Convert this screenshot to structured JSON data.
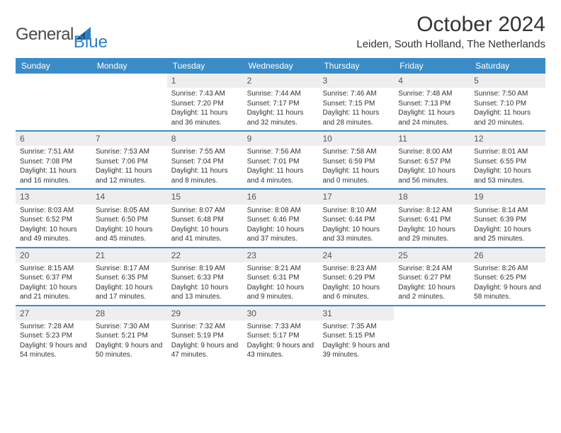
{
  "logo": {
    "general": "General",
    "blue": "Blue"
  },
  "title": "October 2024",
  "location": "Leiden, South Holland, The Netherlands",
  "colors": {
    "header_bg": "#3a8cc9",
    "header_text": "#ffffff",
    "daynum_bg": "#eeeeee",
    "row_border": "#3a8cc9",
    "text": "#333333",
    "logo_blue": "#2c7ec4"
  },
  "day_headers": [
    "Sunday",
    "Monday",
    "Tuesday",
    "Wednesday",
    "Thursday",
    "Friday",
    "Saturday"
  ],
  "weeks": [
    [
      null,
      null,
      {
        "num": "1",
        "sunrise": "Sunrise: 7:43 AM",
        "sunset": "Sunset: 7:20 PM",
        "daylight": "Daylight: 11 hours and 36 minutes."
      },
      {
        "num": "2",
        "sunrise": "Sunrise: 7:44 AM",
        "sunset": "Sunset: 7:17 PM",
        "daylight": "Daylight: 11 hours and 32 minutes."
      },
      {
        "num": "3",
        "sunrise": "Sunrise: 7:46 AM",
        "sunset": "Sunset: 7:15 PM",
        "daylight": "Daylight: 11 hours and 28 minutes."
      },
      {
        "num": "4",
        "sunrise": "Sunrise: 7:48 AM",
        "sunset": "Sunset: 7:13 PM",
        "daylight": "Daylight: 11 hours and 24 minutes."
      },
      {
        "num": "5",
        "sunrise": "Sunrise: 7:50 AM",
        "sunset": "Sunset: 7:10 PM",
        "daylight": "Daylight: 11 hours and 20 minutes."
      }
    ],
    [
      {
        "num": "6",
        "sunrise": "Sunrise: 7:51 AM",
        "sunset": "Sunset: 7:08 PM",
        "daylight": "Daylight: 11 hours and 16 minutes."
      },
      {
        "num": "7",
        "sunrise": "Sunrise: 7:53 AM",
        "sunset": "Sunset: 7:06 PM",
        "daylight": "Daylight: 11 hours and 12 minutes."
      },
      {
        "num": "8",
        "sunrise": "Sunrise: 7:55 AM",
        "sunset": "Sunset: 7:04 PM",
        "daylight": "Daylight: 11 hours and 8 minutes."
      },
      {
        "num": "9",
        "sunrise": "Sunrise: 7:56 AM",
        "sunset": "Sunset: 7:01 PM",
        "daylight": "Daylight: 11 hours and 4 minutes."
      },
      {
        "num": "10",
        "sunrise": "Sunrise: 7:58 AM",
        "sunset": "Sunset: 6:59 PM",
        "daylight": "Daylight: 11 hours and 0 minutes."
      },
      {
        "num": "11",
        "sunrise": "Sunrise: 8:00 AM",
        "sunset": "Sunset: 6:57 PM",
        "daylight": "Daylight: 10 hours and 56 minutes."
      },
      {
        "num": "12",
        "sunrise": "Sunrise: 8:01 AM",
        "sunset": "Sunset: 6:55 PM",
        "daylight": "Daylight: 10 hours and 53 minutes."
      }
    ],
    [
      {
        "num": "13",
        "sunrise": "Sunrise: 8:03 AM",
        "sunset": "Sunset: 6:52 PM",
        "daylight": "Daylight: 10 hours and 49 minutes."
      },
      {
        "num": "14",
        "sunrise": "Sunrise: 8:05 AM",
        "sunset": "Sunset: 6:50 PM",
        "daylight": "Daylight: 10 hours and 45 minutes."
      },
      {
        "num": "15",
        "sunrise": "Sunrise: 8:07 AM",
        "sunset": "Sunset: 6:48 PM",
        "daylight": "Daylight: 10 hours and 41 minutes."
      },
      {
        "num": "16",
        "sunrise": "Sunrise: 8:08 AM",
        "sunset": "Sunset: 6:46 PM",
        "daylight": "Daylight: 10 hours and 37 minutes."
      },
      {
        "num": "17",
        "sunrise": "Sunrise: 8:10 AM",
        "sunset": "Sunset: 6:44 PM",
        "daylight": "Daylight: 10 hours and 33 minutes."
      },
      {
        "num": "18",
        "sunrise": "Sunrise: 8:12 AM",
        "sunset": "Sunset: 6:41 PM",
        "daylight": "Daylight: 10 hours and 29 minutes."
      },
      {
        "num": "19",
        "sunrise": "Sunrise: 8:14 AM",
        "sunset": "Sunset: 6:39 PM",
        "daylight": "Daylight: 10 hours and 25 minutes."
      }
    ],
    [
      {
        "num": "20",
        "sunrise": "Sunrise: 8:15 AM",
        "sunset": "Sunset: 6:37 PM",
        "daylight": "Daylight: 10 hours and 21 minutes."
      },
      {
        "num": "21",
        "sunrise": "Sunrise: 8:17 AM",
        "sunset": "Sunset: 6:35 PM",
        "daylight": "Daylight: 10 hours and 17 minutes."
      },
      {
        "num": "22",
        "sunrise": "Sunrise: 8:19 AM",
        "sunset": "Sunset: 6:33 PM",
        "daylight": "Daylight: 10 hours and 13 minutes."
      },
      {
        "num": "23",
        "sunrise": "Sunrise: 8:21 AM",
        "sunset": "Sunset: 6:31 PM",
        "daylight": "Daylight: 10 hours and 9 minutes."
      },
      {
        "num": "24",
        "sunrise": "Sunrise: 8:23 AM",
        "sunset": "Sunset: 6:29 PM",
        "daylight": "Daylight: 10 hours and 6 minutes."
      },
      {
        "num": "25",
        "sunrise": "Sunrise: 8:24 AM",
        "sunset": "Sunset: 6:27 PM",
        "daylight": "Daylight: 10 hours and 2 minutes."
      },
      {
        "num": "26",
        "sunrise": "Sunrise: 8:26 AM",
        "sunset": "Sunset: 6:25 PM",
        "daylight": "Daylight: 9 hours and 58 minutes."
      }
    ],
    [
      {
        "num": "27",
        "sunrise": "Sunrise: 7:28 AM",
        "sunset": "Sunset: 5:23 PM",
        "daylight": "Daylight: 9 hours and 54 minutes."
      },
      {
        "num": "28",
        "sunrise": "Sunrise: 7:30 AM",
        "sunset": "Sunset: 5:21 PM",
        "daylight": "Daylight: 9 hours and 50 minutes."
      },
      {
        "num": "29",
        "sunrise": "Sunrise: 7:32 AM",
        "sunset": "Sunset: 5:19 PM",
        "daylight": "Daylight: 9 hours and 47 minutes."
      },
      {
        "num": "30",
        "sunrise": "Sunrise: 7:33 AM",
        "sunset": "Sunset: 5:17 PM",
        "daylight": "Daylight: 9 hours and 43 minutes."
      },
      {
        "num": "31",
        "sunrise": "Sunrise: 7:35 AM",
        "sunset": "Sunset: 5:15 PM",
        "daylight": "Daylight: 9 hours and 39 minutes."
      },
      null,
      null
    ]
  ]
}
